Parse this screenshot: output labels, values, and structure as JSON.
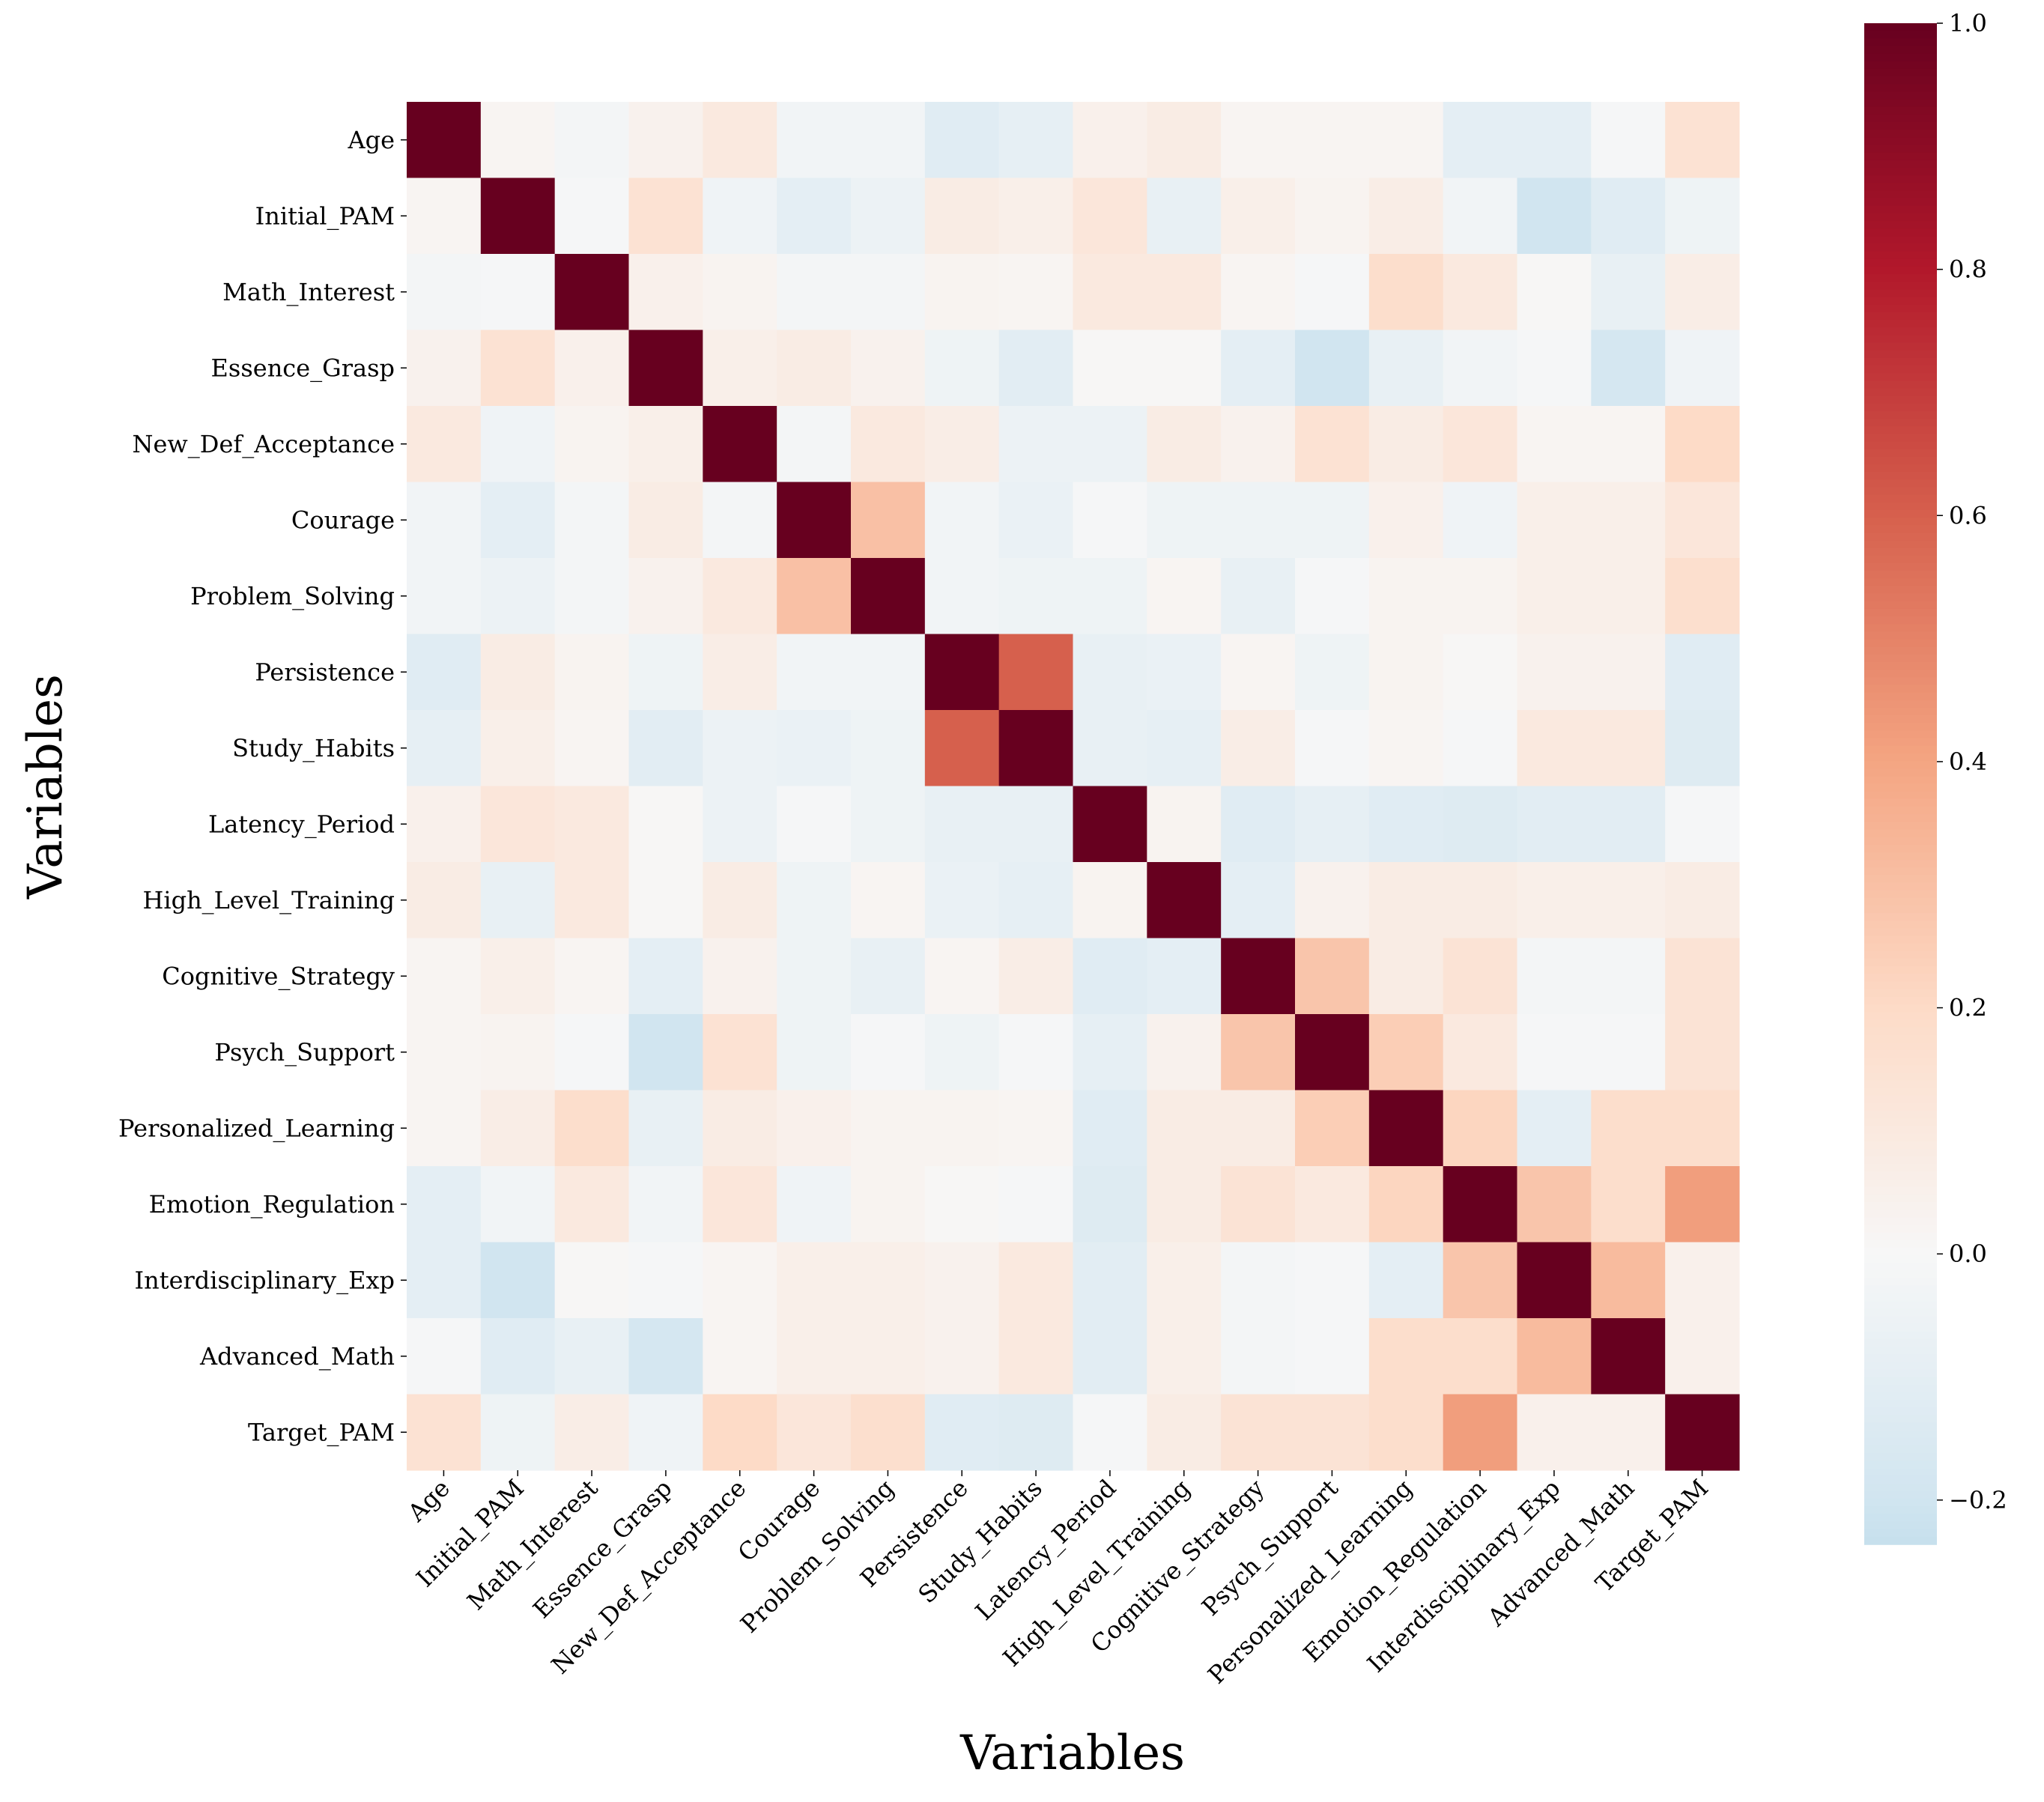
{
  "chart_data": {
    "type": "heatmap",
    "title": "",
    "xlabel": "Variables",
    "ylabel": "Variables",
    "labels": [
      "Age",
      "Initial_PAM",
      "Math_Interest",
      "Essence_Grasp",
      "New_Def_Acceptance",
      "Courage",
      "Problem_Solving",
      "Persistence",
      "Study_Habits",
      "Latency_Period",
      "High_Level_Training",
      "Cognitive_Strategy",
      "Psych_Support",
      "Personalized_Learning",
      "Emotion_Regulation",
      "Interdisciplinary_Exp",
      "Advanced_Math",
      "Target_PAM"
    ],
    "matrix": [
      [
        1,
        0.02,
        -0.02,
        0.04,
        0.1,
        -0.03,
        -0.03,
        -0.12,
        -0.09,
        0.05,
        0.08,
        0.02,
        0.02,
        0.02,
        -0.1,
        -0.1,
        -0.01,
        0.15
      ],
      [
        0.02,
        1,
        -0.01,
        0.15,
        -0.04,
        -0.1,
        -0.06,
        0.08,
        0.06,
        0.12,
        -0.08,
        0.06,
        0.03,
        0.07,
        -0.03,
        -0.2,
        -0.12,
        -0.05
      ],
      [
        -0.02,
        -0.01,
        1,
        0.05,
        0.03,
        -0.02,
        -0.02,
        0.03,
        0.02,
        0.1,
        0.1,
        0.02,
        -0.01,
        0.18,
        0.1,
        0.01,
        -0.08,
        0.07
      ],
      [
        0.04,
        0.15,
        0.05,
        1,
        0.06,
        0.08,
        0.04,
        -0.05,
        -0.11,
        0.01,
        0.01,
        -0.1,
        -0.2,
        -0.08,
        -0.03,
        -0.01,
        -0.18,
        -0.04
      ],
      [
        0.1,
        -0.04,
        0.03,
        0.06,
        1,
        -0.02,
        0.1,
        0.07,
        -0.06,
        -0.06,
        0.08,
        0.04,
        0.15,
        0.08,
        0.12,
        0.02,
        0.02,
        0.2
      ],
      [
        -0.03,
        -0.1,
        -0.02,
        0.08,
        -0.02,
        1,
        0.3,
        -0.03,
        -0.07,
        -0.01,
        -0.05,
        -0.05,
        -0.05,
        0.05,
        -0.04,
        0.06,
        0.06,
        0.12
      ],
      [
        -0.03,
        -0.06,
        -0.02,
        0.04,
        0.1,
        0.3,
        1,
        -0.03,
        -0.05,
        -0.05,
        0.02,
        -0.08,
        -0.01,
        0.03,
        0.03,
        0.06,
        0.06,
        0.17
      ],
      [
        -0.12,
        0.08,
        0.03,
        -0.05,
        0.07,
        -0.03,
        -0.03,
        1,
        0.6,
        -0.08,
        -0.07,
        0.02,
        -0.05,
        0.03,
        0.01,
        0.04,
        0.04,
        -0.12
      ],
      [
        -0.09,
        0.06,
        0.02,
        -0.11,
        -0.06,
        -0.07,
        -0.05,
        0.6,
        1,
        -0.08,
        -0.09,
        0.07,
        -0.01,
        0.02,
        -0.01,
        0.1,
        0.1,
        -0.13
      ],
      [
        0.05,
        0.12,
        0.1,
        0.01,
        -0.06,
        -0.01,
        -0.05,
        -0.08,
        -0.08,
        1,
        0.03,
        -0.12,
        -0.09,
        -0.12,
        -0.13,
        -0.11,
        -0.11,
        -0.01
      ],
      [
        0.08,
        -0.08,
        0.1,
        0.01,
        0.08,
        -0.05,
        0.02,
        -0.07,
        -0.09,
        0.03,
        1,
        -0.1,
        0.04,
        0.08,
        0.08,
        0.06,
        0.06,
        0.08
      ],
      [
        0.02,
        0.06,
        0.02,
        -0.1,
        0.04,
        -0.05,
        -0.08,
        0.02,
        0.07,
        -0.12,
        -0.1,
        1,
        0.28,
        0.08,
        0.14,
        -0.02,
        -0.02,
        0.14
      ],
      [
        0.02,
        0.03,
        -0.01,
        -0.2,
        0.15,
        -0.05,
        -0.01,
        -0.05,
        -0.01,
        -0.09,
        0.04,
        0.28,
        1,
        0.25,
        0.1,
        -0.01,
        -0.01,
        0.14
      ],
      [
        0.02,
        0.07,
        0.18,
        -0.08,
        0.08,
        0.05,
        0.03,
        0.03,
        0.02,
        -0.12,
        0.08,
        0.08,
        0.25,
        1,
        0.22,
        -0.1,
        0.18,
        0.18
      ],
      [
        -0.1,
        -0.03,
        0.1,
        -0.03,
        0.12,
        -0.04,
        0.03,
        0.01,
        -0.01,
        -0.13,
        0.08,
        0.14,
        0.1,
        0.22,
        1,
        0.28,
        0.18,
        0.42
      ],
      [
        -0.1,
        -0.2,
        0.01,
        -0.01,
        0.02,
        0.06,
        0.06,
        0.04,
        0.1,
        -0.11,
        0.06,
        -0.02,
        -0.01,
        -0.1,
        0.28,
        1,
        0.32,
        0.05
      ],
      [
        -0.01,
        -0.12,
        -0.08,
        -0.18,
        0.02,
        0.06,
        0.06,
        0.04,
        0.1,
        -0.11,
        0.06,
        -0.02,
        -0.01,
        0.18,
        0.18,
        0.32,
        1,
        0.05
      ],
      [
        0.15,
        -0.05,
        0.07,
        -0.04,
        0.2,
        0.12,
        0.17,
        -0.12,
        -0.13,
        -0.01,
        0.08,
        0.14,
        0.14,
        0.18,
        0.42,
        0.05,
        0.05,
        1
      ]
    ],
    "colormap": "RdBu_r",
    "center": 0,
    "vlim": [
      -0.236,
      1.0
    ],
    "colorbar_ticks": [
      "1.0",
      "0.8",
      "0.6",
      "0.4",
      "0.2",
      "0.0",
      "−0.2"
    ],
    "colorbar_tick_values": [
      1.0,
      0.8,
      0.6,
      0.4,
      0.2,
      0.0,
      -0.2
    ],
    "grid": false,
    "legend": "colorbar-right"
  }
}
